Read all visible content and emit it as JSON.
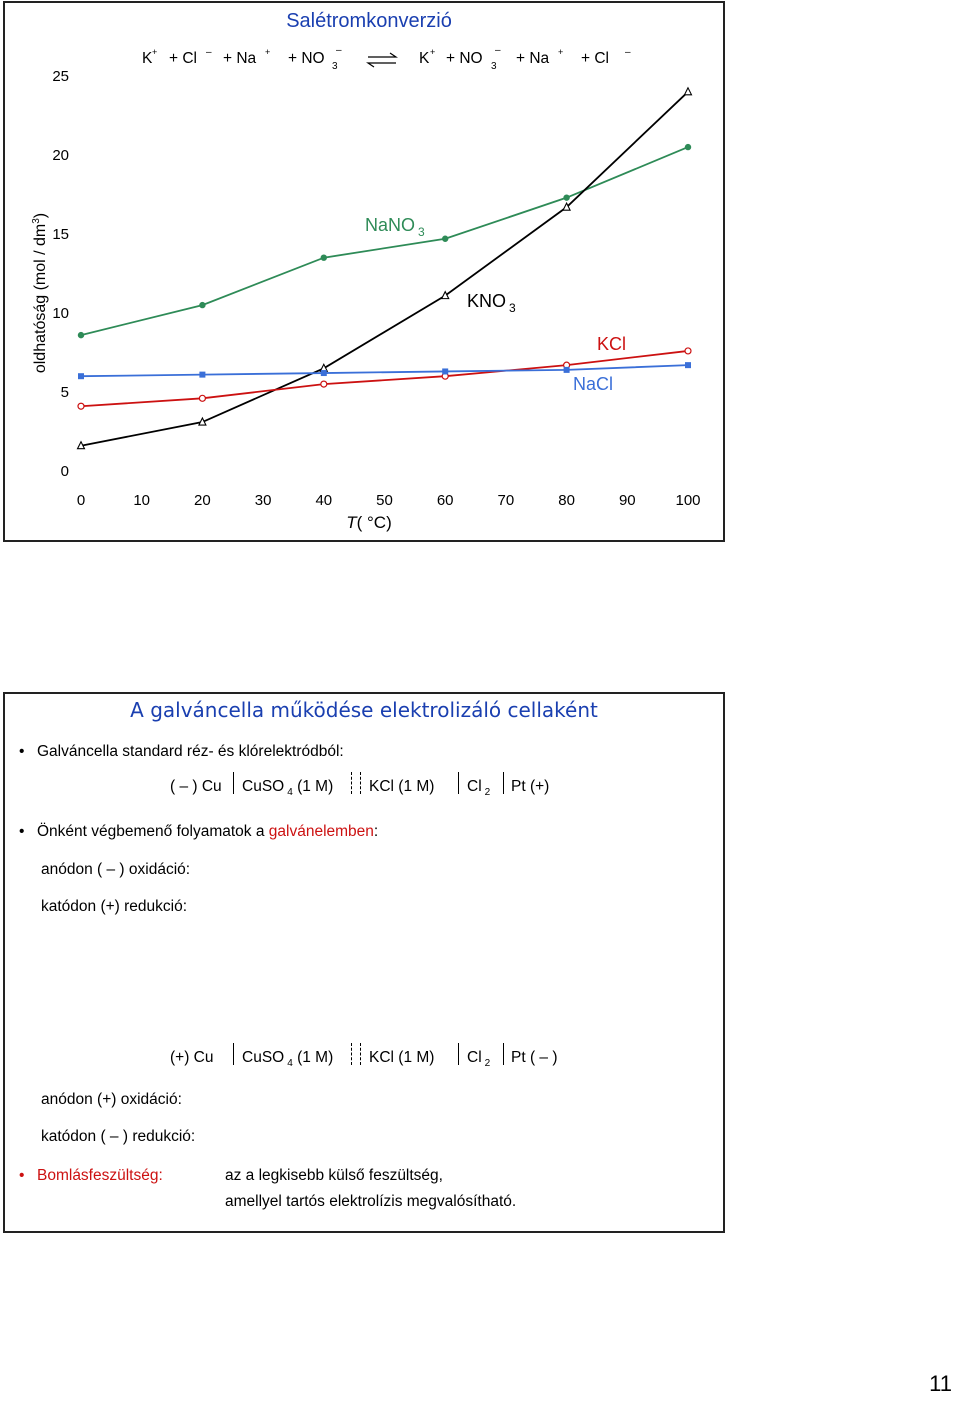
{
  "chart_data": {
    "type": "line",
    "title": "Salétromkonverzió",
    "equation": {
      "t1": "K",
      "t2": "+",
      "t3": "+ Cl",
      "t4": "–",
      "t5": "+ Na",
      "t6": "+",
      "t7": "+ NO",
      "t8": "3",
      "t9": "–",
      "t10": "K",
      "t11": "+",
      "t12": "+ NO",
      "t13": "3",
      "t14": "–",
      "t15": "+ Na",
      "t16": "+",
      "t17": "+ Cl",
      "t18": "–"
    },
    "xlabel_italic": "T",
    "xlabel_rest": "( °C)",
    "ylabel": "oldhatóság (mol / dm",
    "ylabel_sup": "3",
    "ylabel_end": ")",
    "xlim": [
      0,
      100
    ],
    "ylim": [
      0,
      25
    ],
    "xticks": [
      "0",
      "10",
      "20",
      "30",
      "40",
      "50",
      "60",
      "70",
      "80",
      "90",
      "100"
    ],
    "yticks": [
      "0",
      "5",
      "10",
      "15",
      "20",
      "25"
    ],
    "grid": false,
    "series": [
      {
        "name": "NaNO",
        "name_sub": "3",
        "color": "#2e8b57",
        "marker": "filled-circle",
        "x": [
          0,
          20,
          40,
          60,
          80,
          100
        ],
        "y": [
          8.6,
          10.5,
          13.5,
          14.7,
          17.3,
          20.5
        ]
      },
      {
        "name": "KNO",
        "name_sub": "3",
        "color": "#000000",
        "marker": "open-triangle",
        "x": [
          0,
          20,
          40,
          60,
          80,
          100
        ],
        "y": [
          1.6,
          3.1,
          6.5,
          11.1,
          16.7,
          24.0
        ]
      },
      {
        "name": "KCl",
        "name_sub": "",
        "color": "#cc1111",
        "marker": "open-circle",
        "x": [
          0,
          20,
          40,
          60,
          80,
          100
        ],
        "y": [
          4.1,
          4.6,
          5.5,
          6.0,
          6.7,
          7.6
        ]
      },
      {
        "name": "NaCl",
        "name_sub": "",
        "color": "#3a6fd8",
        "marker": "filled-square",
        "x": [
          0,
          20,
          40,
          60,
          80,
          100
        ],
        "y": [
          6.0,
          6.1,
          6.2,
          6.3,
          6.4,
          6.7
        ]
      }
    ]
  },
  "slide2": {
    "title": "A galváncella működése elektrolizáló cellaként",
    "bullet1": "Galváncella standard réz- és klórelektródból:",
    "cell1": {
      "left": "( – ) Cu",
      "cuso": "CuSO",
      "cuso_sub": "4",
      "cuso_rest": "(1 M)",
      "kcl": "KCl (1 M)",
      "cl": "Cl",
      "cl_sub": "2",
      "pt": "Pt (+)"
    },
    "bullet2_prefix": "Önként végbemenő folyamatok a ",
    "bullet2_red": "galvánelemben",
    "bullet2_suffix": ":",
    "anode1": "anódon ( – ) oxidáció:",
    "cathode1": "katódon (+) redukció:",
    "cell2": {
      "left": "(+) Cu",
      "cuso": "CuSO",
      "cuso_sub": "4",
      "cuso_rest": "(1 M)",
      "kcl": "KCl (1 M)",
      "cl": "Cl",
      "cl_sub": "2",
      "pt": "Pt ( – )"
    },
    "anode2": "anódon (+) oxidáció:",
    "cathode2": "katódon ( – ) redukció:",
    "bullet3_label": "Bomlásfeszültség:",
    "definition_line1": "az a legkisebb külső feszültség,",
    "definition_line2": "amellyel tartós elektrolízis megvalósítható."
  },
  "page_number": "11"
}
